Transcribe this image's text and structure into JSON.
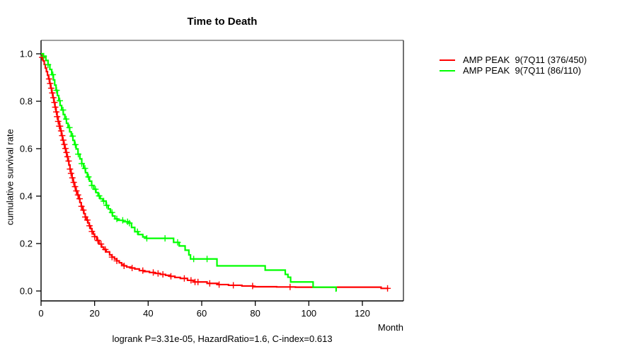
{
  "header": {
    "title": "Time to Death"
  },
  "axes": {
    "x_label": "Month",
    "y_label": "cumulative survival rate"
  },
  "footnote": "logrank P=3.31e-05, HazardRatio=1.6, C-index=0.613",
  "chart_data": {
    "type": "line",
    "subtype": "kaplan-meier-step",
    "title": "Time to Death",
    "xlabel": "Month",
    "ylabel": "cumulative survival rate",
    "xlim": [
      0,
      135
    ],
    "ylim": [
      0,
      1.0
    ],
    "xticks": [
      0,
      20,
      40,
      60,
      80,
      100,
      120
    ],
    "yticks": [
      0.0,
      0.2,
      0.4,
      0.6,
      0.8,
      1.0
    ],
    "grid": false,
    "legend_position": "right",
    "annotation": "logrank P=3.31e-05, HazardRatio=1.6, C-index=0.613",
    "series": [
      {
        "name": "AMP PEAK  9(7Q11 (376/450)",
        "color": "#FF0000",
        "end": 129.7,
        "steps": [
          [
            0,
            1.0
          ],
          [
            0.4,
            0.985
          ],
          [
            0.8,
            0.97
          ],
          [
            1.2,
            0.955
          ],
          [
            1.6,
            0.94
          ],
          [
            2.0,
            0.925
          ],
          [
            2.4,
            0.91
          ],
          [
            2.8,
            0.894
          ],
          [
            3.2,
            0.875
          ],
          [
            3.6,
            0.855
          ],
          [
            4.0,
            0.835
          ],
          [
            4.4,
            0.815
          ],
          [
            4.8,
            0.795
          ],
          [
            5.2,
            0.775
          ],
          [
            5.6,
            0.755
          ],
          [
            6.0,
            0.735
          ],
          [
            6.4,
            0.715
          ],
          [
            6.8,
            0.695
          ],
          [
            7.2,
            0.675
          ],
          [
            7.6,
            0.655
          ],
          [
            8.0,
            0.636
          ],
          [
            8.4,
            0.618
          ],
          [
            8.8,
            0.601
          ],
          [
            9.2,
            0.584
          ],
          [
            9.6,
            0.566
          ],
          [
            10.0,
            0.548
          ],
          [
            10.4,
            0.531
          ],
          [
            10.8,
            0.514
          ],
          [
            11.2,
            0.496
          ],
          [
            11.6,
            0.477
          ],
          [
            12.0,
            0.458
          ],
          [
            12.5,
            0.44
          ],
          [
            13.0,
            0.422
          ],
          [
            13.5,
            0.405
          ],
          [
            14.0,
            0.389
          ],
          [
            14.5,
            0.373
          ],
          [
            15.0,
            0.357
          ],
          [
            15.5,
            0.341
          ],
          [
            16.0,
            0.326
          ],
          [
            16.5,
            0.312
          ],
          [
            17.0,
            0.299
          ],
          [
            17.5,
            0.287
          ],
          [
            18.0,
            0.275
          ],
          [
            18.5,
            0.263
          ],
          [
            19.0,
            0.251
          ],
          [
            19.5,
            0.24
          ],
          [
            20.0,
            0.229
          ],
          [
            20.8,
            0.213
          ],
          [
            21.7,
            0.198
          ],
          [
            22.6,
            0.185
          ],
          [
            23.4,
            0.175
          ],
          [
            24.3,
            0.165
          ],
          [
            25.6,
            0.152
          ],
          [
            26.5,
            0.143
          ],
          [
            27.4,
            0.135
          ],
          [
            28.3,
            0.127
          ],
          [
            29.2,
            0.119
          ],
          [
            30.1,
            0.112
          ],
          [
            31.0,
            0.106
          ],
          [
            32.0,
            0.101
          ],
          [
            33.5,
            0.097
          ],
          [
            35.0,
            0.093
          ],
          [
            36.7,
            0.086
          ],
          [
            38.5,
            0.082
          ],
          [
            40.5,
            0.078
          ],
          [
            42.5,
            0.074
          ],
          [
            44.5,
            0.07
          ],
          [
            46.5,
            0.066
          ],
          [
            48.1,
            0.062
          ],
          [
            50.0,
            0.057
          ],
          [
            52.0,
            0.053
          ],
          [
            54.7,
            0.045
          ],
          [
            57.0,
            0.038
          ],
          [
            62.0,
            0.032
          ],
          [
            66.0,
            0.027
          ],
          [
            70.0,
            0.024
          ],
          [
            75.0,
            0.021
          ],
          [
            79.3,
            0.018
          ],
          [
            88.0,
            0.017
          ],
          [
            95.0,
            0.016
          ],
          [
            127.0,
            0.011
          ]
        ],
        "censor_times": [
          0.4,
          3.0,
          3.4,
          3.8,
          4.2,
          4.6,
          5.0,
          5.3,
          5.7,
          6.0,
          6.4,
          6.8,
          7.1,
          7.5,
          7.9,
          8.3,
          8.7,
          9.1,
          9.5,
          9.9,
          10.3,
          10.8,
          11.2,
          11.7,
          12.2,
          12.7,
          13.2,
          13.8,
          14.4,
          15.1,
          15.8,
          16.5,
          17.3,
          18.1,
          19.0,
          20.0,
          21.2,
          22.4,
          24.0,
          26.5,
          28.3,
          31.0,
          34.0,
          38.0,
          41.9,
          43.7,
          45.5,
          48.5,
          53.5,
          56.0,
          57.5,
          58.6,
          63.0,
          66.5,
          71.8,
          79.0,
          93.0,
          129.4
        ]
      },
      {
        "name": "AMP PEAK  9(7Q11 (86/110)",
        "color": "#00FF00",
        "end": 110.4,
        "steps": [
          [
            0,
            1.0
          ],
          [
            0.9,
            0.99
          ],
          [
            1.8,
            0.972
          ],
          [
            2.6,
            0.954
          ],
          [
            3.3,
            0.934
          ],
          [
            4.0,
            0.912
          ],
          [
            4.6,
            0.89
          ],
          [
            5.1,
            0.868
          ],
          [
            5.6,
            0.846
          ],
          [
            6.1,
            0.824
          ],
          [
            6.6,
            0.802
          ],
          [
            7.1,
            0.782
          ],
          [
            7.7,
            0.763
          ],
          [
            8.3,
            0.744
          ],
          [
            8.9,
            0.725
          ],
          [
            9.5,
            0.707
          ],
          [
            10.1,
            0.689
          ],
          [
            10.7,
            0.671
          ],
          [
            11.3,
            0.653
          ],
          [
            11.9,
            0.635
          ],
          [
            12.5,
            0.617
          ],
          [
            13.1,
            0.599
          ],
          [
            13.8,
            0.577
          ],
          [
            14.5,
            0.557
          ],
          [
            15.2,
            0.537
          ],
          [
            15.9,
            0.517
          ],
          [
            16.6,
            0.499
          ],
          [
            17.3,
            0.481
          ],
          [
            18.1,
            0.463
          ],
          [
            18.9,
            0.445
          ],
          [
            19.7,
            0.429
          ],
          [
            20.5,
            0.415
          ],
          [
            21.3,
            0.401
          ],
          [
            22.1,
            0.389
          ],
          [
            23.1,
            0.379
          ],
          [
            24.3,
            0.361
          ],
          [
            25.1,
            0.346
          ],
          [
            25.9,
            0.331
          ],
          [
            26.7,
            0.316
          ],
          [
            27.6,
            0.304
          ],
          [
            28.6,
            0.298
          ],
          [
            30.6,
            0.292
          ],
          [
            32.6,
            0.286
          ],
          [
            33.8,
            0.268
          ],
          [
            35.0,
            0.25
          ],
          [
            36.3,
            0.238
          ],
          [
            38.0,
            0.228
          ],
          [
            39.3,
            0.222
          ],
          [
            49.5,
            0.205
          ],
          [
            51.6,
            0.19
          ],
          [
            53.8,
            0.172
          ],
          [
            55.2,
            0.152
          ],
          [
            55.8,
            0.135
          ],
          [
            65.7,
            0.106
          ],
          [
            83.7,
            0.088
          ],
          [
            91.2,
            0.07
          ],
          [
            92.2,
            0.058
          ],
          [
            93.2,
            0.038
          ],
          [
            101.6,
            0.016
          ],
          [
            110.2,
            0.0
          ]
        ],
        "censor_times": [
          1.0,
          2.6,
          4.4,
          5.8,
          7.0,
          8.2,
          9.4,
          10.6,
          11.8,
          12.8,
          13.9,
          15.2,
          16.4,
          17.7,
          19.0,
          20.3,
          21.7,
          23.4,
          24.5,
          26.5,
          28.3,
          30.5,
          32.3,
          33.0,
          36.0,
          39.5,
          46.3,
          51.0,
          57.0,
          62.0
        ]
      }
    ]
  }
}
